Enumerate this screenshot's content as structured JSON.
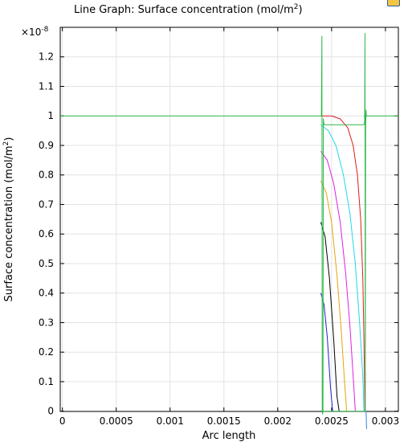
{
  "chart_data": {
    "type": "line",
    "title": "Line Graph: Surface concentration (mol/m",
    "title_sup": "2",
    "title_close": ")",
    "xlabel": "Arc length",
    "ylabel": "Surface concentration (mol/m",
    "ylabel_sup": "2",
    "ylabel_close": ")",
    "scale_label": "×10",
    "scale_exp": "-8",
    "xlim": [
      -2e-05,
      0.00312
    ],
    "ylim": [
      -0.00085,
      1.3
    ],
    "grid": true,
    "x_ticks": [
      0,
      0.0005,
      0.001,
      0.0015,
      0.002,
      0.0025,
      0.003
    ],
    "x_tick_labels": [
      "0",
      "0.0005",
      "0.001",
      "0.0015",
      "0.002",
      "0.0025",
      "0.003"
    ],
    "y_ticks": [
      0,
      0.1,
      0.2,
      0.3,
      0.4,
      0.5,
      0.6,
      0.7,
      0.8,
      0.9,
      1,
      1.1,
      1.2
    ],
    "y_tick_labels": [
      "0",
      "0.1",
      "0.2",
      "0.3",
      "0.4",
      "0.5",
      "0.6",
      "0.7",
      "0.8",
      "0.9",
      "1",
      "1.1",
      "1.2"
    ],
    "series": [
      {
        "color": "#1f1fd6",
        "x": [
          0.0024,
          0.00243,
          0.00246,
          0.00249,
          0.00251,
          0.00252
        ],
        "y": [
          0.4,
          0.36,
          0.25,
          0.08,
          0.0,
          0.0
        ]
      },
      {
        "color": "#000000",
        "x": [
          0.0024,
          0.00244,
          0.00248,
          0.00252,
          0.00255,
          0.00257
        ],
        "y": [
          0.64,
          0.59,
          0.45,
          0.24,
          0.05,
          0.0
        ]
      },
      {
        "color": "#e5a30b",
        "x": [
          0.0024,
          0.00245,
          0.0025,
          0.00255,
          0.00259,
          0.00262,
          0.00264
        ],
        "y": [
          0.78,
          0.74,
          0.64,
          0.46,
          0.27,
          0.1,
          0.0
        ]
      },
      {
        "color": "#e020e0",
        "x": [
          0.0024,
          0.00246,
          0.00252,
          0.00258,
          0.00263,
          0.00267,
          0.0027,
          0.00272
        ],
        "y": [
          0.88,
          0.85,
          0.77,
          0.64,
          0.47,
          0.29,
          0.12,
          0.0
        ]
      },
      {
        "color": "#20d8e8",
        "x": [
          0.0024,
          0.00247,
          0.00254,
          0.00261,
          0.00267,
          0.00272,
          0.00276,
          0.00279,
          0.0028
        ],
        "y": [
          0.97,
          0.95,
          0.9,
          0.8,
          0.67,
          0.5,
          0.3,
          0.12,
          0.0
        ]
      },
      {
        "color": "#e01a1a",
        "x": [
          0.0024,
          0.0025,
          0.00258,
          0.00265,
          0.0027,
          0.00274,
          0.00277,
          0.00279,
          0.0028,
          0.00281
        ],
        "y": [
          1.0,
          1.0,
          0.99,
          0.96,
          0.9,
          0.8,
          0.65,
          0.45,
          0.25,
          0.0
        ]
      },
      {
        "color": "#3a7fd8",
        "x": [
          0.0028,
          0.002805,
          0.00281,
          0.002813,
          0.002816,
          0.00282
        ],
        "y": [
          1.0,
          1.0,
          0.99,
          0.96,
          0.98,
          1.0
        ]
      },
      {
        "color": "#2fb84a",
        "x": [
          -2e-05,
          0.0024,
          0.002405,
          0.00241,
          0.002413,
          0.002416,
          0.00242,
          0.002423,
          0.00243,
          0.0025,
          0.0026,
          0.0027,
          0.0028,
          0.002807,
          0.00281,
          0.002813,
          0.002816,
          0.00282,
          0.002823,
          0.00283,
          0.0029,
          0.00312
        ],
        "y": [
          1.0,
          1.0,
          1.0,
          1.27,
          0.0,
          -0.01,
          0.0,
          0.99,
          0.97,
          0.97,
          0.97,
          0.97,
          0.97,
          0.98,
          1.28,
          0.0,
          0.97,
          1.02,
          1.0,
          1.0,
          1.0,
          1.0
        ]
      },
      {
        "color": "#2fb84a",
        "x": [
          0.002413,
          0.0025,
          0.0026,
          0.0027,
          0.002813
        ],
        "y": [
          0.0,
          0.0,
          0.0,
          0.0,
          0.0
        ]
      },
      {
        "color": "#3a7fd8",
        "x": [
          0.00282,
          0.002822,
          0.002824,
          0.002826
        ],
        "y": [
          0.0,
          -0.02,
          -0.05,
          -0.06
        ]
      }
    ]
  }
}
